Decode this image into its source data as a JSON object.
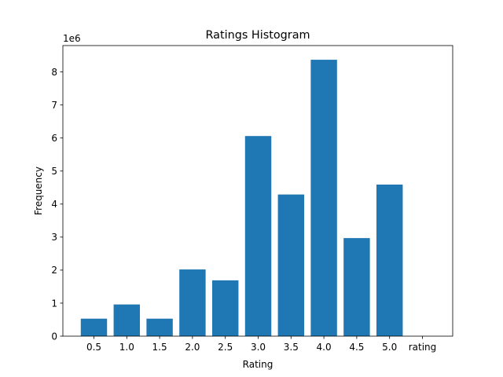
{
  "chart_data": {
    "type": "bar",
    "title": "Ratings Histogram",
    "xlabel": "Rating",
    "ylabel": "Frequency",
    "y_multiplier_label": "1e6",
    "y_multiplier": 1000000,
    "categories": [
      "0.5",
      "1.0",
      "1.5",
      "2.0",
      "2.5",
      "3.0",
      "3.5",
      "4.0",
      "4.5",
      "5.0",
      "rating"
    ],
    "values": [
      530000,
      960000,
      530000,
      2020000,
      1690000,
      6060000,
      4290000,
      8370000,
      2970000,
      4590000,
      0
    ],
    "ylim": [
      0,
      8800000
    ],
    "yticks": [
      "0",
      "1",
      "2",
      "3",
      "4",
      "5",
      "6",
      "7",
      "8"
    ],
    "bar_color": "#1f77b4",
    "grid": false,
    "legend": "none"
  }
}
